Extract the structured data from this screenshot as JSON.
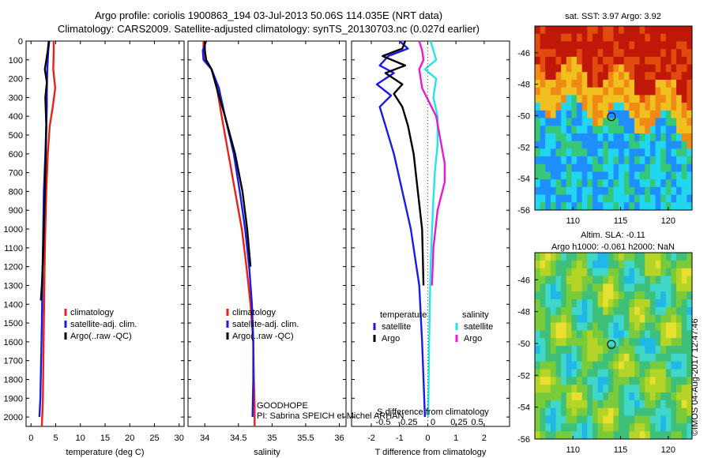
{
  "header": {
    "line1": "Argo profile: coriolis 1900863_194 03-Jul-2013 50.06S 114.035E (NRT data)",
    "line2": "Climatology: CARS2009. Satellite-adjusted climatology: synTS_20130703.nc (0.027d earlier)"
  },
  "colors": {
    "red": "#e8211c",
    "blue": "#1a1ae6",
    "black": "#000000",
    "cyan": "#22e5e8",
    "magenta": "#e61ad6"
  },
  "annotations": {
    "program": "GOODHOPE",
    "pi": "PI: Sabrina SPEICH et Michel ARHAN",
    "credit": "©IMOS 04-Aug-2017 12:47:46"
  },
  "chart_data": [
    {
      "type": "line",
      "xlabel": "temperature (deg C)",
      "ylabel": "",
      "xlim": [
        -1,
        31
      ],
      "ylim": [
        2050,
        0
      ],
      "xticks": [
        0,
        5,
        10,
        15,
        20,
        25,
        30
      ],
      "yticks": [
        0,
        100,
        200,
        300,
        400,
        500,
        600,
        700,
        800,
        900,
        1000,
        1100,
        1200,
        1300,
        1400,
        1500,
        1600,
        1700,
        1800,
        1900,
        2000
      ],
      "legend": [
        "climatology",
        "satellite-adj. clim.",
        "Argo(..raw -QC)"
      ],
      "series": [
        {
          "name": "climatology",
          "color": "red",
          "x": [
            4.6,
            4.6,
            4.5,
            4.9,
            4.4,
            3.8,
            3.4,
            3.1,
            2.8,
            2.6,
            2.4,
            2.2
          ],
          "y": [
            0,
            50,
            150,
            250,
            350,
            450,
            600,
            800,
            1100,
            1500,
            1900,
            2050
          ]
        },
        {
          "name": "satellite-adj. clim.",
          "color": "blue",
          "x": [
            3.7,
            3.5,
            3.3,
            3.2,
            3.2,
            3.1,
            2.9,
            2.6,
            2.4,
            2.2,
            1.9,
            1.7
          ],
          "y": [
            0,
            50,
            150,
            250,
            350,
            450,
            600,
            800,
            1100,
            1500,
            1900,
            2000
          ]
        },
        {
          "name": "Argo(..raw -QC)",
          "color": "black",
          "x": [
            3.6,
            3.4,
            2.8,
            3.2,
            2.9,
            3.1,
            3.0,
            2.8,
            2.5,
            2.2,
            2.0
          ],
          "y": [
            0,
            50,
            150,
            220,
            300,
            450,
            600,
            800,
            1100,
            1300,
            1380
          ]
        }
      ]
    },
    {
      "type": "line",
      "xlabel": "salinity",
      "ylabel": "",
      "xlim": [
        33.75,
        36.1
      ],
      "ylim": [
        2050,
        0
      ],
      "xticks": [
        34,
        34.5,
        35,
        35.5,
        36
      ],
      "legend": [
        "climatology",
        "satellite-adj. clim.",
        "Argo(..raw -QC)"
      ],
      "series": [
        {
          "name": "climatology",
          "color": "red",
          "x": [
            33.98,
            33.98,
            34.0,
            34.1,
            34.18,
            34.25,
            34.35,
            34.45,
            34.55,
            34.62,
            34.68,
            34.72,
            34.73,
            34.74,
            34.74
          ],
          "y": [
            0,
            50,
            100,
            150,
            250,
            400,
            600,
            800,
            1000,
            1200,
            1400,
            1600,
            1800,
            1950,
            2050
          ]
        },
        {
          "name": "satellite-adj. clim.",
          "color": "blue",
          "x": [
            34.02,
            33.97,
            33.98,
            34.1,
            34.21,
            34.3,
            34.43,
            34.52,
            34.6,
            34.66,
            34.7,
            34.72,
            34.72,
            34.71
          ],
          "y": [
            0,
            50,
            100,
            150,
            250,
            400,
            600,
            800,
            1000,
            1200,
            1400,
            1600,
            1800,
            2000
          ]
        },
        {
          "name": "Argo(..raw -QC)",
          "color": "black",
          "x": [
            34.0,
            34.0,
            34.02,
            34.1,
            34.2,
            34.3,
            34.45,
            34.56,
            34.63,
            34.68
          ],
          "y": [
            0,
            50,
            100,
            150,
            280,
            400,
            600,
            800,
            1000,
            1200
          ]
        }
      ]
    },
    {
      "type": "line",
      "xlabel": "T difference from climatology",
      "ylabel": "",
      "xlabel_top": "S difference from climatology",
      "xlim": [
        -2.7,
        2.9
      ],
      "ylim": [
        2050,
        0
      ],
      "xticks": [
        -2,
        -1,
        0,
        1,
        2
      ],
      "xticks_top": [
        "-0.5",
        "-0.25",
        "0",
        "0.25",
        "0.5"
      ],
      "legend_groups": [
        {
          "title": "temperature",
          "entries": [
            {
              "label": "satellite",
              "color": "blue"
            },
            {
              "label": "Argo",
              "color": "black"
            }
          ]
        },
        {
          "title": "salinity",
          "entries": [
            {
              "label": "satellite",
              "color": "cyan"
            },
            {
              "label": "Argo",
              "color": "magenta"
            }
          ]
        }
      ],
      "series": [
        {
          "name": "T satellite",
          "color": "blue",
          "x": [
            -1.0,
            -0.7,
            -1.4,
            -1.7,
            -1.2,
            -1.8,
            -1.3,
            -1.7,
            -1.5,
            -1.2,
            -0.9,
            -0.6,
            -0.3,
            -0.2,
            -0.1
          ],
          "y": [
            0,
            40,
            80,
            130,
            170,
            230,
            290,
            350,
            450,
            600,
            800,
            1000,
            1300,
            1600,
            2000
          ]
        },
        {
          "name": "T Argo",
          "color": "black",
          "x": [
            -0.8,
            -0.9,
            -1.6,
            -0.8,
            -1.5,
            -0.9,
            -1.2,
            -0.9,
            -0.7,
            -0.5,
            -0.35,
            -0.2,
            -0.15
          ],
          "y": [
            0,
            40,
            80,
            130,
            170,
            230,
            280,
            350,
            450,
            600,
            800,
            1000,
            1300
          ]
        },
        {
          "name": "S satellite",
          "color": "cyan",
          "x": [
            0.1,
            0.2,
            0.3,
            -0.1,
            0.3,
            0.2,
            0.35,
            0.35,
            0.25,
            0.18,
            0.1,
            0.05,
            0.02
          ],
          "y": [
            0,
            50,
            100,
            150,
            200,
            300,
            400,
            550,
            700,
            900,
            1200,
            1600,
            2000
          ]
        },
        {
          "name": "S Argo",
          "color": "magenta",
          "x": [
            -0.3,
            -0.2,
            -0.15,
            -0.3,
            -0.2,
            0.3,
            0.6,
            0.6,
            0.35,
            0.2,
            0.15
          ],
          "y": [
            0,
            50,
            100,
            150,
            250,
            400,
            650,
            750,
            900,
            1100,
            1300
          ]
        }
      ]
    },
    {
      "type": "heatmap",
      "title": "sat. SST: 3.97 Argo: 3.92",
      "xlim": [
        106,
        122.5
      ],
      "ylim": [
        -56,
        -44.3
      ],
      "xticks": [
        110,
        115,
        120
      ],
      "yticks": [
        -46,
        -48,
        -50,
        -52,
        -54,
        -56
      ],
      "marker": {
        "lon": 114.035,
        "lat": -50.06
      }
    },
    {
      "type": "heatmap",
      "title": "Altim. SLA: -0.11",
      "subtitle": "Argo h1000: -0.061 h2000: NaN",
      "xlim": [
        106,
        122.5
      ],
      "ylim": [
        -56,
        -44.3
      ],
      "xticks": [
        110,
        115,
        120
      ],
      "yticks": [
        -46,
        -48,
        -50,
        -52,
        -54,
        -56
      ],
      "marker": {
        "lon": 114.035,
        "lat": -50.06
      }
    }
  ]
}
